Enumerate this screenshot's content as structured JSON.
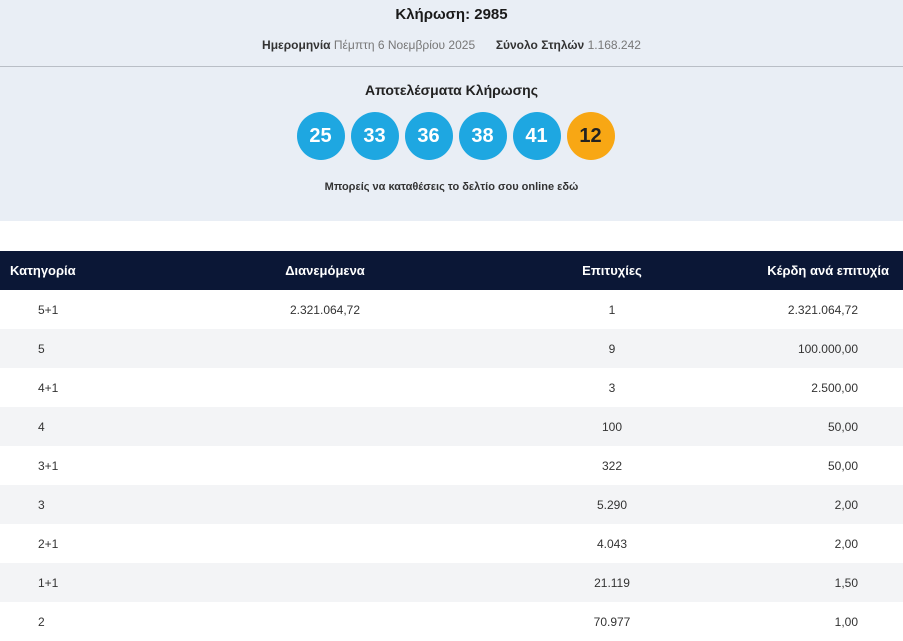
{
  "header": {
    "title": "Κλήρωση: 2985",
    "date_label": "Ημερομηνία",
    "date_value": "Πέμπτη 6 Νοεμβρίου 2025",
    "total_label": "Σύνολο Στηλών",
    "total_value": "1.168.242"
  },
  "results": {
    "title": "Αποτελέσματα Κλήρωσης",
    "numbers": [
      "25",
      "33",
      "36",
      "38",
      "41"
    ],
    "joker": "12",
    "online_link": "Μπορείς να καταθέσεις το δελτίο σου online εδώ",
    "colors": {
      "ball": "#1ea7e1",
      "joker": "#f8a714"
    }
  },
  "table": {
    "columns": [
      "Κατηγορία",
      "Διανεμόμενα",
      "Επιτυχίες",
      "Κέρδη ανά επιτυχία"
    ],
    "rows": [
      [
        "5+1",
        "2.321.064,72",
        "1",
        "2.321.064,72"
      ],
      [
        "5",
        "",
        "9",
        "100.000,00"
      ],
      [
        "4+1",
        "",
        "3",
        "2.500,00"
      ],
      [
        "4",
        "",
        "100",
        "50,00"
      ],
      [
        "3+1",
        "",
        "322",
        "50,00"
      ],
      [
        "3",
        "",
        "5.290",
        "2,00"
      ],
      [
        "2+1",
        "",
        "4.043",
        "2,00"
      ],
      [
        "1+1",
        "",
        "21.119",
        "1,50"
      ],
      [
        "2",
        "",
        "70.977",
        "1,00"
      ]
    ]
  }
}
